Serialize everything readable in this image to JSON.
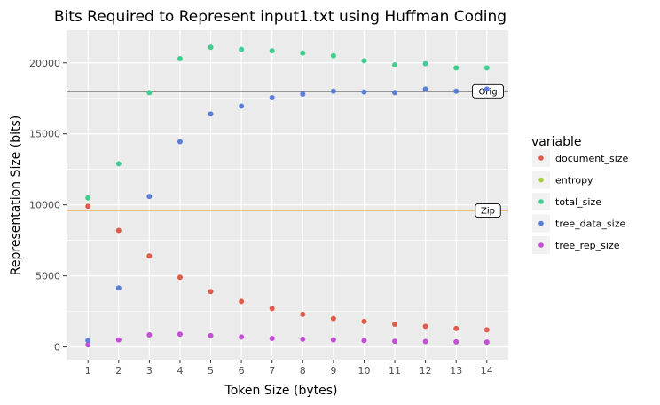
{
  "chart_data": {
    "type": "scatter",
    "title": "Bits Required to Represent input1.txt using Huffman Coding",
    "xlabel": "Token Size (bytes)",
    "ylabel": "Representation Size (bits)",
    "xlim": [
      0.3,
      14.7
    ],
    "ylim": [
      -900,
      22300
    ],
    "x_ticks": [
      1,
      2,
      3,
      4,
      5,
      6,
      7,
      8,
      9,
      10,
      11,
      12,
      13,
      14
    ],
    "y_ticks": [
      0,
      5000,
      10000,
      15000,
      20000
    ],
    "y_tick_labels": [
      "0",
      "5000",
      "10000",
      "15000",
      "20000"
    ],
    "grid": true,
    "legend": {
      "title": "variable",
      "position": "right",
      "entries": [
        "document_size",
        "entropy",
        "total_size",
        "tree_data_size",
        "tree_rep_size"
      ]
    },
    "series": [
      {
        "name": "document_size",
        "color": "#e05c4a",
        "x": [
          1,
          2,
          3,
          4,
          5,
          6,
          7,
          8,
          9,
          10,
          11,
          12,
          13,
          14
        ],
        "values": [
          9900,
          8200,
          6400,
          4900,
          3900,
          3200,
          2700,
          2300,
          2000,
          1800,
          1600,
          1450,
          1300,
          1200
        ]
      },
      {
        "name": "entropy",
        "color": "#a3cc3a",
        "x": [],
        "values": []
      },
      {
        "name": "total_size",
        "color": "#3ecf8e",
        "x": [
          1,
          2,
          3,
          4,
          5,
          6,
          7,
          8,
          9,
          10,
          11,
          12,
          13,
          14
        ],
        "values": [
          10500,
          12900,
          17900,
          20300,
          21100,
          20950,
          20850,
          20700,
          20500,
          20150,
          19850,
          19950,
          19650,
          19650
        ]
      },
      {
        "name": "tree_data_size",
        "color": "#5b7fd6",
        "x": [
          1,
          2,
          3,
          4,
          5,
          6,
          7,
          8,
          9,
          10,
          11,
          12,
          13,
          14
        ],
        "values": [
          450,
          4150,
          10600,
          14450,
          16400,
          16950,
          17550,
          17800,
          18000,
          17950,
          17900,
          18150,
          18000,
          18150
        ]
      },
      {
        "name": "tree_rep_size",
        "color": "#c44fd6",
        "x": [
          1,
          2,
          3,
          4,
          5,
          6,
          7,
          8,
          9,
          10,
          11,
          12,
          13,
          14
        ],
        "values": [
          150,
          500,
          850,
          900,
          800,
          700,
          600,
          550,
          500,
          450,
          400,
          380,
          360,
          340
        ]
      }
    ],
    "reference_lines": [
      {
        "label": "Orig",
        "value": 18000,
        "color": "#000000"
      },
      {
        "label": "Zip",
        "value": 9600,
        "color": "#f0a22e"
      }
    ]
  }
}
